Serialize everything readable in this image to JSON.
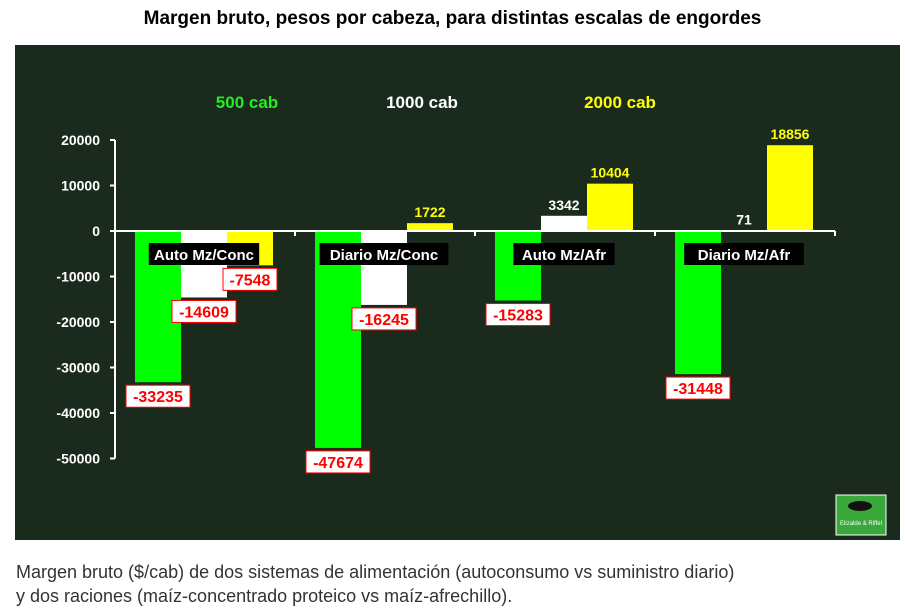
{
  "title": "Margen bruto, pesos por cabeza, para distintas escalas de engordes",
  "caption_line1": "Margen bruto ($/cab) de dos sistemas de alimentación (autoconsumo vs suministro diario)",
  "caption_line2": "y dos raciones (maíz-concentrado proteico vs maíz-afrechillo).",
  "logo_text": "Elizalde & Riffel",
  "chart_data": {
    "type": "bar",
    "title": "Margen bruto, pesos por cabeza, para distintas escalas de engordes",
    "categories": [
      "Auto Mz/Conc",
      "Diario Mz/Conc",
      "Auto Mz/Afr",
      "Diario Mz/Afr"
    ],
    "series": [
      {
        "name": "500 cab",
        "color": "#00ff00",
        "values": [
          -33235,
          -47674,
          -15283,
          -31448
        ]
      },
      {
        "name": "1000 cab",
        "color": "#ffffff",
        "values": [
          -14609,
          -16245,
          3342,
          71
        ]
      },
      {
        "name": "2000 cab",
        "color": "#ffff00",
        "values": [
          -7548,
          1722,
          10404,
          18856
        ]
      }
    ],
    "yticks": [
      20000,
      10000,
      0,
      -10000,
      -20000,
      -30000,
      -40000,
      -50000
    ],
    "ylim": [
      -50000,
      20000
    ],
    "legend": "top",
    "background": "#1a2b1e"
  }
}
